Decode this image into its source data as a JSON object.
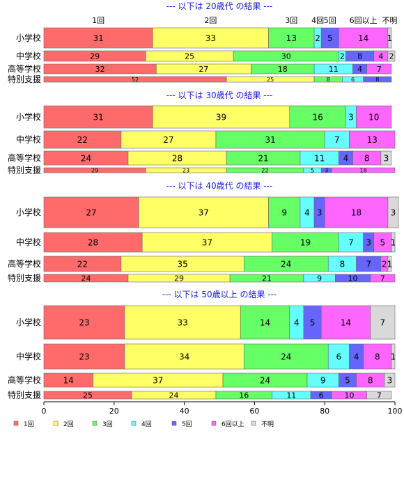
{
  "chart_data": {
    "type": "bar",
    "orientation": "horizontal",
    "stacked": true,
    "xlim": [
      0,
      100
    ],
    "x_ticks": [
      "0",
      "20",
      "40",
      "60",
      "80",
      "100"
    ],
    "grid": false,
    "legend_position": "bottom-left",
    "categories_legend": [
      "1回",
      "2回",
      "3回",
      "4回",
      "5回",
      "6回以上",
      "不明"
    ],
    "colors": [
      "#ff6b6b",
      "#ffff66",
      "#66ff66",
      "#66ffff",
      "#6666ff",
      "#ff66ff",
      "#d9d9d9"
    ],
    "top_header_labels": [
      "1回",
      "2回",
      "3回",
      "4回",
      "5回",
      "6回以上",
      "不明"
    ],
    "panels": [
      {
        "title": "--- 以下は 20歳代 の結果 ---",
        "rows": [
          {
            "label": "小学校",
            "values": [
              31,
              33,
              13,
              2,
              5,
              14,
              1
            ]
          },
          {
            "label": "中学校",
            "values": [
              29,
              25,
              30,
              2,
              8,
              4,
              2
            ]
          },
          {
            "label": "高等学校",
            "values": [
              32,
              27,
              18,
              11,
              4,
              7,
              0
            ]
          },
          {
            "label": "特別支援",
            "values": [
              52,
              25,
              8,
              6,
              8,
              0,
              0
            ]
          }
        ]
      },
      {
        "title": "--- 以下は 30歳代 の結果 ---",
        "rows": [
          {
            "label": "小学校",
            "values": [
              31,
              39,
              16,
              3,
              0,
              10,
              0
            ]
          },
          {
            "label": "中学校",
            "values": [
              22,
              27,
              31,
              7,
              0,
              13,
              0
            ]
          },
          {
            "label": "高等学校",
            "values": [
              24,
              28,
              21,
              11,
              4,
              8,
              3
            ]
          },
          {
            "label": "特別支援",
            "values": [
              29,
              23,
              22,
              5,
              3,
              18,
              0
            ]
          }
        ]
      },
      {
        "title": "--- 以下は 40歳代 の結果 ---",
        "rows": [
          {
            "label": "小学校",
            "values": [
              27,
              37,
              9,
              4,
              3,
              18,
              3
            ]
          },
          {
            "label": "中学校",
            "values": [
              28,
              37,
              19,
              7,
              3,
              5,
              1
            ]
          },
          {
            "label": "高等学校",
            "values": [
              22,
              35,
              24,
              8,
              7,
              2,
              1
            ]
          },
          {
            "label": "特別支援",
            "values": [
              24,
              29,
              21,
              9,
              10,
              7,
              0
            ]
          }
        ]
      },
      {
        "title": "--- 以下は 50歳以上 の結果 ---",
        "rows": [
          {
            "label": "小学校",
            "values": [
              23,
              33,
              14,
              4,
              5,
              14,
              7
            ]
          },
          {
            "label": "中学校",
            "values": [
              23,
              34,
              24,
              6,
              4,
              8,
              1
            ]
          },
          {
            "label": "高等学校",
            "values": [
              14,
              37,
              24,
              9,
              5,
              8,
              3
            ]
          },
          {
            "label": "特別支援",
            "values": [
              25,
              24,
              16,
              11,
              6,
              10,
              7
            ]
          }
        ]
      }
    ]
  }
}
